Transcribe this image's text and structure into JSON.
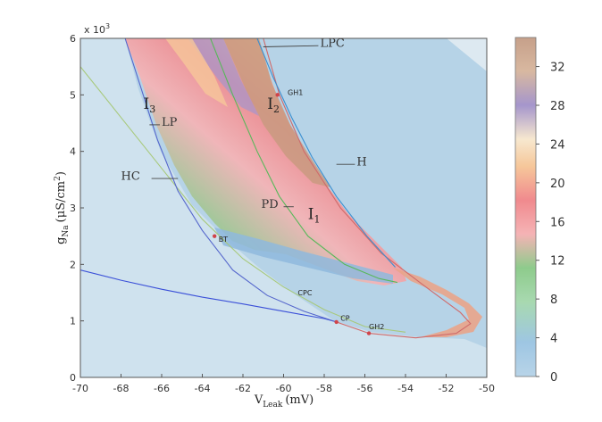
{
  "chart_data": {
    "type": "heatmap",
    "title": "",
    "xlabel": "V",
    "xlabel_sub": "Leak",
    "xlabel_unit": "(mV)",
    "ylabel": "g",
    "ylabel_sub": "Na",
    "ylabel_unit_pre": "(μS/cm",
    "ylabel_unit_sup": "2",
    "ylabel_unit_post": ")",
    "y_multiplier": "x 10",
    "y_multiplier_exp": "3",
    "xlim": [
      -70,
      -50
    ],
    "ylim": [
      0,
      6
    ],
    "x_ticks": [
      -70,
      -68,
      -66,
      -64,
      -62,
      -60,
      -58,
      -56,
      -54,
      -52,
      -50
    ],
    "y_ticks": [
      0,
      1,
      2,
      3,
      4,
      5,
      6
    ],
    "colorbar": {
      "range": [
        0,
        35
      ],
      "ticks": [
        0,
        4,
        8,
        12,
        16,
        20,
        24,
        28,
        32
      ],
      "colors": [
        "#b8d4e8",
        "#9ec6e3",
        "#9fd3a6",
        "#8ecb8c",
        "#f2a3a6",
        "#f08a8e",
        "#f6c79a",
        "#e8e0d0",
        "#a596cc",
        "#c6a08a"
      ]
    },
    "curves": [
      {
        "name": "HC",
        "color": "#a8c97c",
        "points": [
          [
            -70,
            5.5
          ],
          [
            -68,
            4.6
          ],
          [
            -66,
            3.7
          ],
          [
            -64,
            2.8
          ],
          [
            -62,
            2.1
          ],
          [
            -60,
            1.6
          ],
          [
            -58,
            1.2
          ],
          [
            -56,
            0.9
          ],
          [
            -54,
            0.8
          ]
        ]
      },
      {
        "name": "CPC",
        "color": "#3a4fd8",
        "points": [
          [
            -70,
            1.9
          ],
          [
            -68,
            1.72
          ],
          [
            -66,
            1.56
          ],
          [
            -64,
            1.42
          ],
          [
            -62,
            1.3
          ],
          [
            -60,
            1.17
          ],
          [
            -58,
            1.04
          ],
          [
            -57.4,
            0.98
          ]
        ]
      },
      {
        "name": "LP",
        "color": "#5566cc",
        "points": [
          [
            -67.8,
            6.0
          ],
          [
            -67,
            5.1
          ],
          [
            -66.2,
            4.2
          ],
          [
            -65.2,
            3.3
          ],
          [
            -64,
            2.6
          ],
          [
            -62.5,
            1.9
          ],
          [
            -60.8,
            1.45
          ],
          [
            -59,
            1.17
          ],
          [
            -57.4,
            0.98
          ]
        ]
      },
      {
        "name": "H",
        "color": "#d06a6a",
        "points": [
          [
            -61,
            6.0
          ],
          [
            -60.2,
            5.0
          ],
          [
            -59,
            4.0
          ],
          [
            -57.2,
            3.0
          ],
          [
            -55.2,
            2.2
          ],
          [
            -53,
            1.6
          ],
          [
            -51.3,
            1.15
          ],
          [
            -50.8,
            0.95
          ],
          [
            -51.5,
            0.78
          ],
          [
            -53.5,
            0.7
          ],
          [
            -55.8,
            0.78
          ],
          [
            -57.4,
            0.98
          ]
        ]
      },
      {
        "name": "LPC",
        "color": "#3a8fd0",
        "points": [
          [
            -61.3,
            6.0
          ],
          [
            -60.5,
            5.3
          ],
          [
            -59.6,
            4.6
          ],
          [
            -58.6,
            3.9
          ],
          [
            -57.4,
            3.2
          ],
          [
            -55.9,
            2.5
          ],
          [
            -54.5,
            1.95
          ]
        ]
      },
      {
        "name": "PD",
        "color": "#58b85a",
        "points": [
          [
            -63.6,
            6.0
          ],
          [
            -62.5,
            5.0
          ],
          [
            -61.3,
            4.0
          ],
          [
            -60.2,
            3.2
          ],
          [
            -58.8,
            2.5
          ],
          [
            -57,
            2.0
          ],
          [
            -55.3,
            1.75
          ],
          [
            -54.4,
            1.68
          ]
        ]
      }
    ],
    "points": [
      {
        "name": "BT",
        "x": -63.4,
        "y": 2.5
      },
      {
        "name": "CP",
        "x": -57.4,
        "y": 0.98
      },
      {
        "name": "GH1",
        "x": -60.3,
        "y": 5.0
      },
      {
        "name": "GH2",
        "x": -55.8,
        "y": 0.78
      }
    ],
    "annotations": [
      {
        "text": "LPC",
        "x": -58.2,
        "y": 5.85
      },
      {
        "text": "GH1",
        "x": -59.8,
        "y": 5.0
      },
      {
        "text": "I",
        "sub": "3",
        "x": -66.9,
        "y": 4.75
      },
      {
        "text": "I",
        "sub": "2",
        "x": -60.8,
        "y": 4.75
      },
      {
        "text": "LP",
        "x": -66.0,
        "y": 4.45
      },
      {
        "text": "H",
        "x": -56.4,
        "y": 3.75
      },
      {
        "text": "HC",
        "x": -68.0,
        "y": 3.5
      },
      {
        "text": "PD",
        "x": -61.1,
        "y": 3.0
      },
      {
        "text": "I",
        "sub": "1",
        "x": -58.8,
        "y": 2.8
      },
      {
        "text": "BT",
        "x": -63.2,
        "y": 2.4
      },
      {
        "text": "CPC",
        "x": -59.3,
        "y": 1.45
      },
      {
        "text": "CP",
        "x": -57.2,
        "y": 1.0
      },
      {
        "text": "GH2",
        "x": -55.8,
        "y": 0.85
      }
    ],
    "region_order": [
      "I1",
      "I2",
      "I3"
    ]
  }
}
